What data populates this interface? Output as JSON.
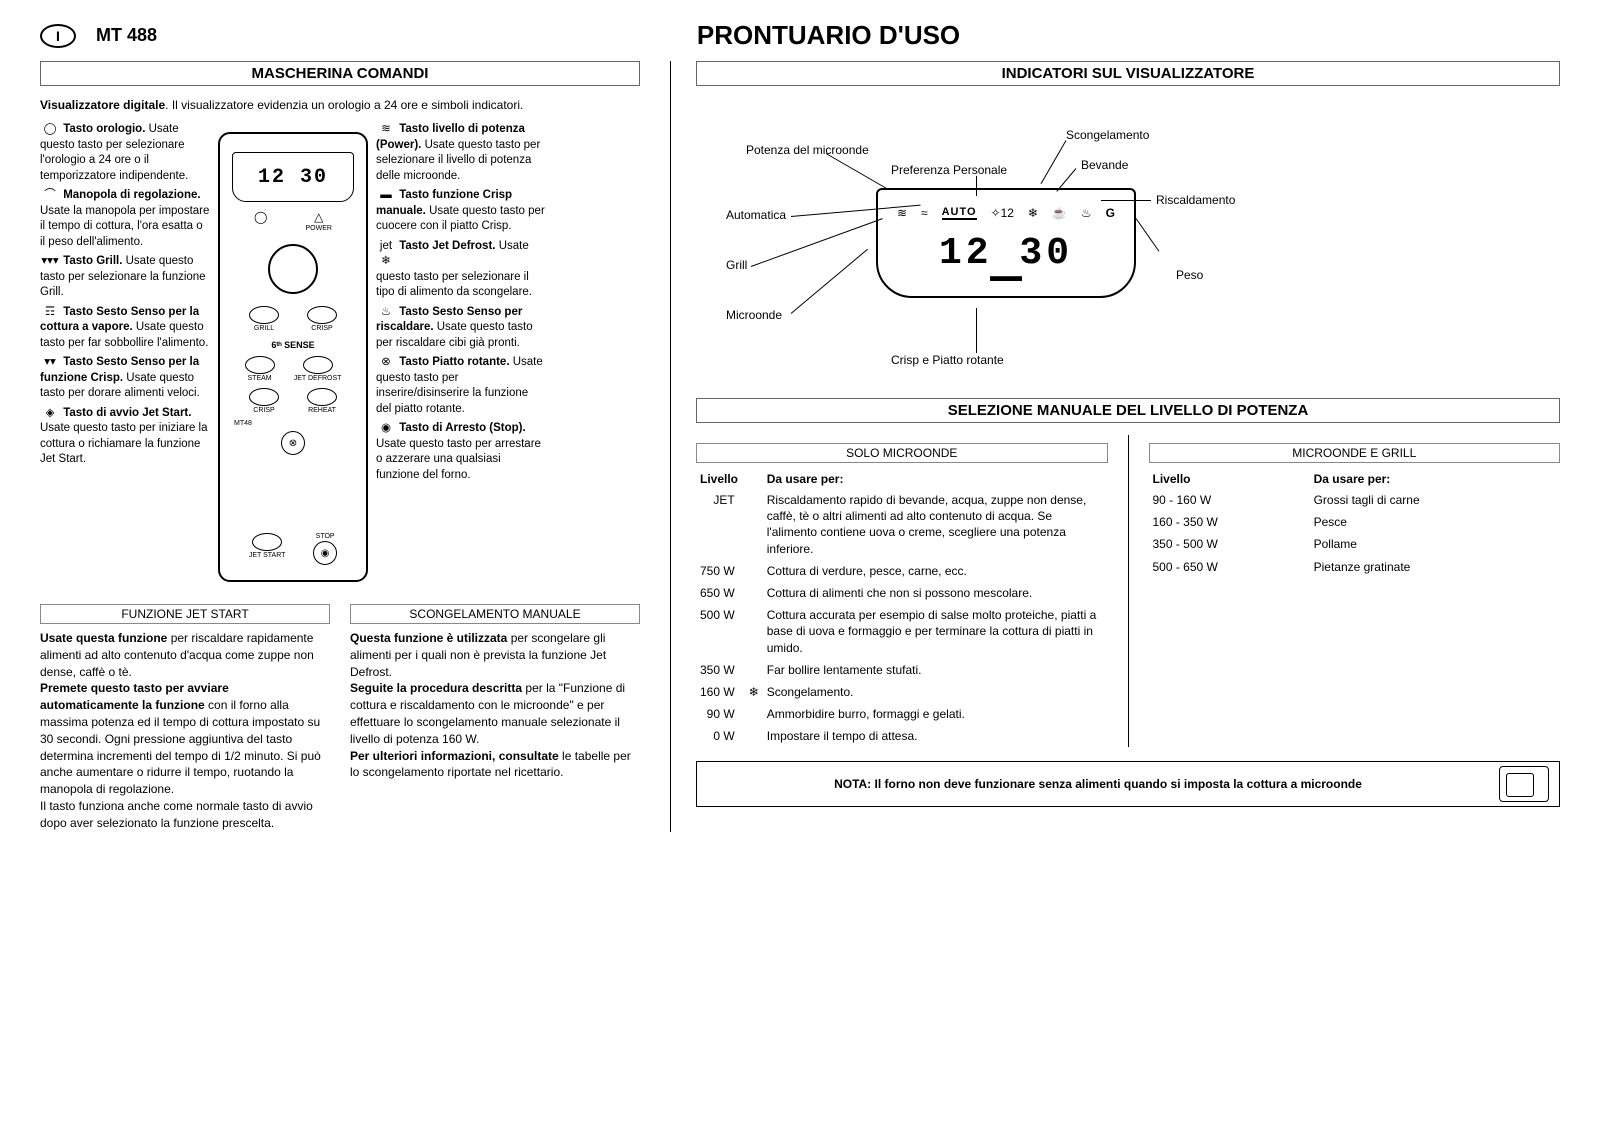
{
  "header": {
    "lang": "I",
    "model": "MT 488",
    "title": "PRONTUARIO D'USO"
  },
  "left": {
    "section": "MASCHERINA COMANDI",
    "intro_bold": "Visualizzatore digitale",
    "intro_rest": ". Il visualizzatore evidenzia un orologio a 24 ore e simboli indicatori.",
    "display_time": "12 30",
    "callouts_left": [
      {
        "icon": "◯",
        "title": "Tasto orologio.",
        "text": "Usate questo tasto per selezionare l'orologio a 24 ore o il temporizzatore indipendente."
      },
      {
        "icon": "⌒",
        "title": "Manopola di regolazione.",
        "text": "Usate la manopola per impostare il tempo di cottura, l'ora esatta o il peso dell'alimento."
      },
      {
        "icon": "▾▾▾",
        "title": "Tasto Grill.",
        "text": "Usate questo tasto per selezionare la funzione Grill."
      },
      {
        "icon": "☶",
        "title": "Tasto Sesto Senso per la cottura a vapore.",
        "text": "Usate questo tasto per far sobbollire l'alimento."
      },
      {
        "icon": "▾▾",
        "title": "Tasto Sesto Senso per la funzione Crisp.",
        "text": "Usate questo tasto per dorare alimenti veloci."
      },
      {
        "icon": "◈",
        "title": "Tasto di avvio Jet Start.",
        "text": "Usate questo tasto per iniziare la cottura o richiamare la funzione Jet Start."
      }
    ],
    "callouts_right": [
      {
        "icon": "≋",
        "title": "Tasto livello di potenza (Power).",
        "text": "Usate questo tasto per selezionare il livello di potenza delle microonde."
      },
      {
        "icon": "▬",
        "title": "Tasto funzione Crisp manuale.",
        "text": "Usate questo tasto per cuocere con il piatto Crisp."
      },
      {
        "icon": "jet ❄",
        "title": "Tasto Jet Defrost.",
        "text": "Usate questo tasto per selezionare il tipo di alimento da scongelare."
      },
      {
        "icon": "♨",
        "title": "Tasto Sesto Senso per riscaldare.",
        "text": "Usate questo tasto per riscaldare cibi già pronti."
      },
      {
        "icon": "⊗",
        "title": "Tasto Piatto rotante.",
        "text": "Usate questo tasto per inserire/disinserire la funzione del piatto rotante."
      },
      {
        "icon": "◉",
        "title": "Tasto di Arresto (Stop).",
        "text": "Usate questo tasto per arrestare o azzerare una qualsiasi funzione del forno."
      }
    ],
    "panel_labels": {
      "power": "POWER",
      "grill": "GRILL",
      "crisp": "CRISP",
      "sense": "6ᵗʰ SENSE",
      "steam": "STEAM",
      "defrost": "JET DEFROST",
      "crisp2": "CRISP",
      "reheat": "REHEAT",
      "model": "MT48",
      "stop": "STOP",
      "start": "JET START"
    },
    "jetstart": {
      "title": "FUNZIONE JET START",
      "p1_bold": "Usate questa funzione",
      "p1_rest": " per riscaldare rapidamente alimenti ad alto contenuto d'acqua come zuppe non dense, caffè o tè.",
      "p2_bold": "Premete questo tasto per avviare automaticamente la funzione",
      "p2_rest": " con il forno alla massima potenza ed il tempo di cottura impostato su 30 secondi. Ogni pressione aggiuntiva del tasto determina incrementi del tempo di 1/2 minuto. Si può anche aumentare o ridurre il tempo, ruotando la manopola di regolazione.",
      "p3": "Il tasto funziona anche come normale tasto di avvio dopo aver selezionato la funzione prescelta."
    },
    "defrost_manual": {
      "title": "SCONGELAMENTO MANUALE",
      "p1_bold": "Questa funzione è utilizzata",
      "p1_rest": " per scongelare gli alimenti per i quali non è prevista la funzione Jet Defrost.",
      "p2_bold": "Seguite la procedura descritta",
      "p2_rest": " per la \"Funzione di cottura e riscaldamento con le microonde\" e per effettuare lo scongelamento manuale selezionate il livello di potenza 160 W.",
      "p3_bold": "Per ulteriori informazioni, consultate",
      "p3_rest": " le tabelle per lo scongelamento riportate nel ricettario."
    }
  },
  "right": {
    "indicators": {
      "section": "INDICATORI SUL VISUALIZZATORE",
      "display_time": "12  30",
      "auto_text": "AUTO",
      "labels": {
        "potenza": "Potenza del microonde",
        "preferenza": "Preferenza Personale",
        "scongelamento": "Scongelamento",
        "bevande": "Bevande",
        "riscaldamento": "Riscaldamento",
        "automatica": "Automatica",
        "grill": "Grill",
        "microonde": "Microonde",
        "crisp": "Crisp e Piatto rotante",
        "peso": "Peso"
      }
    },
    "power_section": "SELEZIONE MANUALE DEL LIVELLO DI POTENZA",
    "micro_only": {
      "title": "SOLO MICROONDE",
      "col1": "Livello",
      "col2": "Da usare per:",
      "rows": [
        {
          "lvl": "JET",
          "use": "Riscaldamento rapido di bevande, acqua, zuppe non dense, caffè, tè o altri alimenti ad alto contenuto di acqua. Se l'alimento contiene uova o creme, scegliere una potenza inferiore."
        },
        {
          "lvl": "750 W",
          "use": "Cottura di verdure, pesce, carne, ecc."
        },
        {
          "lvl": "650 W",
          "use": "Cottura di alimenti che non si possono mescolare."
        },
        {
          "lvl": "500 W",
          "use": "Cottura accurata per esempio di salse molto proteiche, piatti a base di uova e formaggio e per terminare la cottura di piatti in umido."
        },
        {
          "lvl": "350 W",
          "use": "Far bollire lentamente stufati."
        },
        {
          "lvl": "160 W",
          "icon": "❄",
          "use": "Scongelamento."
        },
        {
          "lvl": "90 W",
          "use": "Ammorbidire burro, formaggi e gelati."
        },
        {
          "lvl": "0 W",
          "use": "Impostare il tempo di attesa."
        }
      ]
    },
    "micro_grill": {
      "title": "MICROONDE E GRILL",
      "col1": "Livello",
      "col2": "Da usare per:",
      "rows": [
        {
          "lvl": "90 - 160 W",
          "use": "Grossi tagli di carne"
        },
        {
          "lvl": "160 - 350 W",
          "use": "Pesce"
        },
        {
          "lvl": "350 - 500 W",
          "use": "Pollame"
        },
        {
          "lvl": "500 - 650 W",
          "use": "Pietanze gratinate"
        }
      ]
    },
    "note": "NOTA: Il forno non deve funzionare senza alimenti quando si imposta la cottura a microonde"
  }
}
